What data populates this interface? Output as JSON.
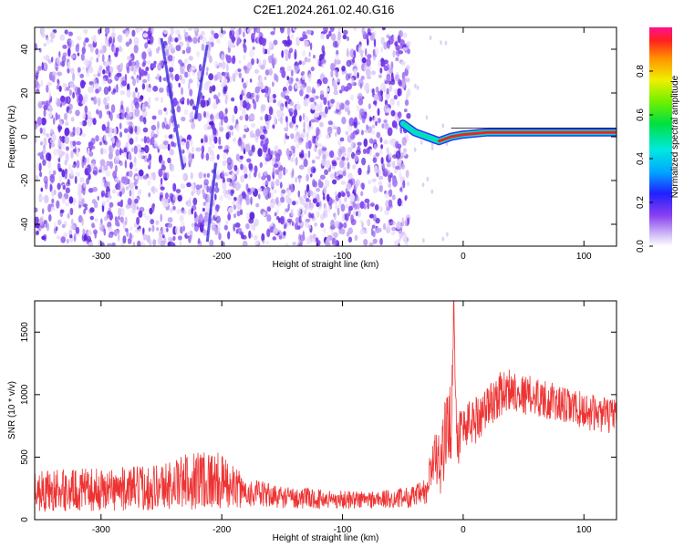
{
  "title": "C2E1.2024.261.02.40.G16",
  "colors": {
    "noise_purple": "#7a3cf0",
    "signal_red": "#ee3333",
    "trace_red": "#ee3333"
  },
  "chart_data": [
    {
      "type": "heatmap",
      "title": "",
      "xlabel": "Height of straight line (km)",
      "ylabel": "Frequency (Hz)",
      "xlim": [
        -355,
        127
      ],
      "ylim": [
        -50,
        50
      ],
      "xticks": [
        -300,
        -200,
        -100,
        0,
        100
      ],
      "yticks": [
        -40,
        -20,
        0,
        20,
        40
      ],
      "x_tick_labels": [
        "-300",
        "-200",
        "-100",
        "0",
        "100"
      ],
      "y_tick_labels": [
        "-40",
        "-20",
        "0",
        "20",
        "40"
      ],
      "noise_region_x": [
        -355,
        -45
      ],
      "signal_line": {
        "x": [
          -50,
          -40,
          -30,
          -20,
          -10,
          0,
          20,
          50,
          80,
          100,
          127
        ],
        "freq": [
          6,
          2,
          0,
          -2,
          0,
          1,
          2,
          2,
          2,
          2,
          2
        ]
      },
      "colorbar": {
        "label": "Normalized spectral amplitude",
        "range": [
          0,
          1
        ],
        "ticks": [
          0.0,
          0.2,
          0.4,
          0.6,
          0.8
        ],
        "tick_labels": [
          "0.0",
          "0.2",
          "0.4",
          "0.6",
          "0.8"
        ]
      }
    },
    {
      "type": "line",
      "title": "",
      "xlabel": "Height of straight line (km)",
      "ylabel": "SNR (10 * v/v)",
      "xlim": [
        -355,
        127
      ],
      "ylim": [
        0,
        1750
      ],
      "xticks": [
        -300,
        -200,
        -100,
        0,
        100
      ],
      "yticks": [
        0,
        500,
        1000,
        1500
      ],
      "x_tick_labels": [
        "-300",
        "-200",
        "-100",
        "0",
        "100"
      ],
      "y_tick_labels": [
        "0",
        "500",
        "1000",
        "1500"
      ],
      "series": [
        {
          "x": [
            -355,
            -330,
            -300,
            -270,
            -240,
            -215,
            -200,
            -180,
            -150,
            -120,
            -100,
            -80,
            -60,
            -40,
            -30,
            -25,
            -20,
            -15,
            -10,
            -8,
            -5,
            0,
            10,
            20,
            30,
            40,
            50,
            60,
            80,
            100,
            127
          ],
          "y": [
            230,
            235,
            240,
            250,
            280,
            340,
            300,
            220,
            180,
            165,
            160,
            160,
            165,
            185,
            220,
            500,
            420,
            650,
            800,
            1700,
            650,
            750,
            800,
            900,
            1000,
            1050,
            1000,
            990,
            920,
            870,
            820
          ],
          "spread": [
            170,
            170,
            170,
            180,
            200,
            260,
            220,
            120,
            90,
            80,
            75,
            75,
            75,
            90,
            120,
            250,
            260,
            300,
            350,
            200,
            250,
            200,
            200,
            180,
            180,
            170,
            160,
            160,
            150,
            150,
            140
          ]
        }
      ]
    }
  ]
}
